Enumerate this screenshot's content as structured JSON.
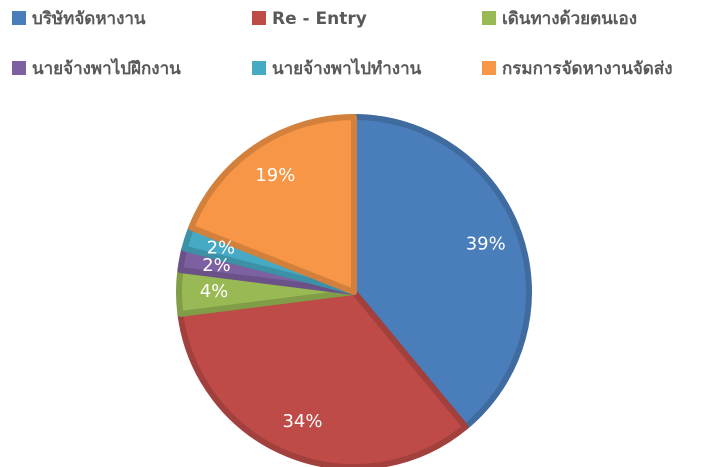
{
  "chart_data": {
    "type": "pie",
    "categories": [
      "บริษัทจัดหางาน",
      "Re - Entry",
      "เดินทางด้วยตนเอง",
      "นายจ้างพาไปฝึกงาน",
      "นายจ้างพาไปทำงาน",
      "กรมการจัดหางานจัดส่ง"
    ],
    "values": [
      39,
      34,
      4,
      2,
      2,
      19
    ],
    "value_labels": [
      "39%",
      "34%",
      "4%",
      "2%",
      "2%",
      "19%"
    ],
    "colors": [
      "#4a7ebb",
      "#be4b48",
      "#98b954",
      "#7d60a0",
      "#46aac5",
      "#f79646"
    ],
    "legend": "top"
  }
}
